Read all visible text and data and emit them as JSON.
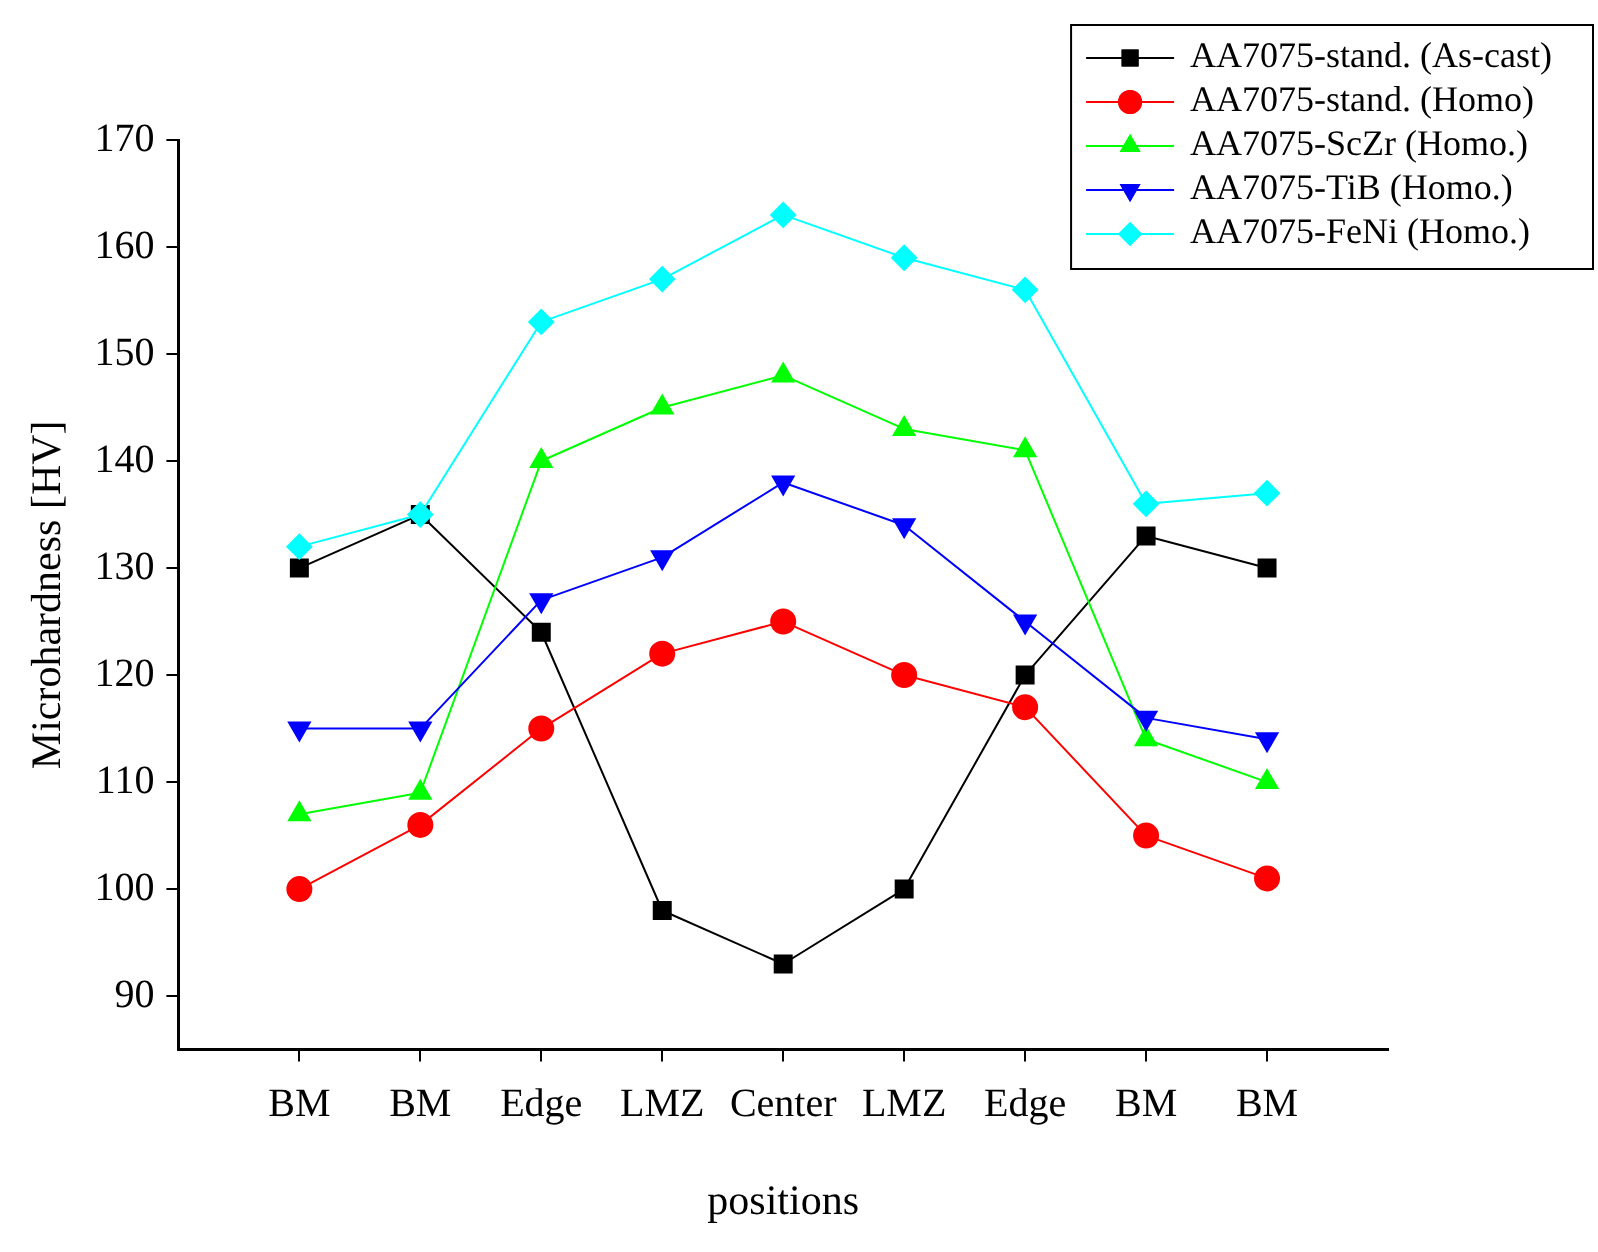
{
  "chart_data": {
    "type": "line",
    "xlabel": "positions",
    "ylabel": "Microhardness [HV]",
    "categories": [
      "BM",
      "BM",
      "Edge",
      "LMZ",
      "Center",
      "LMZ",
      "Edge",
      "BM",
      "BM"
    ],
    "series": [
      {
        "name": "AA7075-stand. (As-cast)",
        "color": "#000000",
        "marker": "square",
        "values": [
          130,
          135,
          124,
          98,
          93,
          100,
          120,
          133,
          130
        ]
      },
      {
        "name": "AA7075-stand. (Homo)",
        "color": "#ff0000",
        "marker": "circle",
        "values": [
          100,
          106,
          115,
          122,
          125,
          120,
          117,
          105,
          101
        ]
      },
      {
        "name": "AA7075-ScZr (Homo.)",
        "color": "#00ff00",
        "marker": "triangle",
        "values": [
          107,
          109,
          140,
          145,
          148,
          143,
          141,
          114,
          110
        ]
      },
      {
        "name": "AA7075-TiB (Homo.)",
        "color": "#0000ff",
        "marker": "triangle-down",
        "values": [
          115,
          115,
          127,
          131,
          138,
          134,
          125,
          116,
          114
        ]
      },
      {
        "name": "AA7075-FeNi (Homo.)",
        "color": "#00ffff",
        "marker": "diamond",
        "values": [
          132,
          135,
          153,
          157,
          163,
          159,
          156,
          136,
          137
        ]
      }
    ],
    "ylim": [
      85,
      170
    ],
    "yticks": [
      90,
      100,
      110,
      120,
      130,
      140,
      150,
      160,
      170
    ],
    "grid": false,
    "legend": "top right",
    "line_style": "solid"
  }
}
